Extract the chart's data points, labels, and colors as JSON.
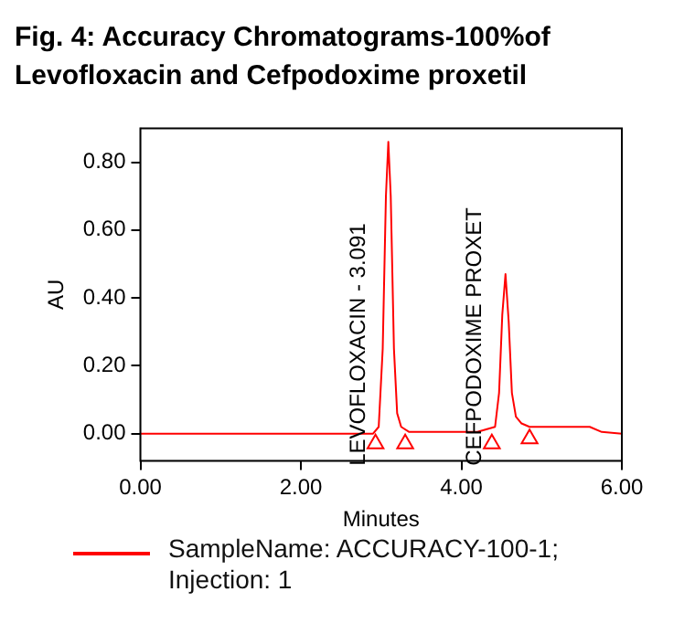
{
  "chart_data": {
    "type": "line",
    "title": "Fig. 4: Accuracy Chromatograms-100%of Levofloxacin and  Cefpodoxime proxetil",
    "xlabel": "Minutes",
    "ylabel": "AU",
    "xlim": [
      0,
      6
    ],
    "ylim": [
      -0.08,
      0.9
    ],
    "xticks": [
      {
        "value": 0,
        "label": "0.00"
      },
      {
        "value": 2,
        "label": "2.00"
      },
      {
        "value": 4,
        "label": "4.00"
      },
      {
        "value": 6,
        "label": "6.00"
      }
    ],
    "yticks": [
      {
        "value": 0,
        "label": "0.00"
      },
      {
        "value": 0.2,
        "label": "0.20"
      },
      {
        "value": 0.4,
        "label": "0.40"
      },
      {
        "value": 0.6,
        "label": "0.60"
      },
      {
        "value": 0.8,
        "label": "0.80"
      }
    ],
    "grid": false,
    "legend": "bottom",
    "line_style": "solid",
    "series": [
      {
        "name": "SampleName: ACCURACY-100-1; Injection: 1",
        "color": "#ff0000",
        "marker": "none",
        "x": [
          0,
          1,
          2,
          2.9,
          2.97,
          3.02,
          3.06,
          3.09,
          3.12,
          3.16,
          3.2,
          3.25,
          3.35,
          4.2,
          4.42,
          4.47,
          4.51,
          4.55,
          4.59,
          4.63,
          4.68,
          4.75,
          4.85,
          5.6,
          5.75,
          6
        ],
        "values": [
          0,
          0,
          0,
          0,
          0.02,
          0.25,
          0.7,
          0.86,
          0.7,
          0.25,
          0.06,
          0.02,
          0.005,
          0.005,
          0.02,
          0.12,
          0.35,
          0.47,
          0.33,
          0.12,
          0.05,
          0.03,
          0.02,
          0.02,
          0.005,
          0
        ]
      },
      {
        "type": "scatter",
        "color": "#ff0000",
        "marker": "triangle",
        "x": [
          2.93,
          3.3,
          4.38,
          4.85
        ],
        "values": [
          -0.03,
          -0.03,
          -0.03,
          -0.015
        ]
      }
    ],
    "annotations": [
      {
        "text": "LEVOFLOXACIN - 3.091",
        "x": 2.93,
        "y": -0.03
      },
      {
        "text": "CEFPODOXIME PROXET",
        "x": 4.38,
        "y": -0.03
      }
    ]
  }
}
